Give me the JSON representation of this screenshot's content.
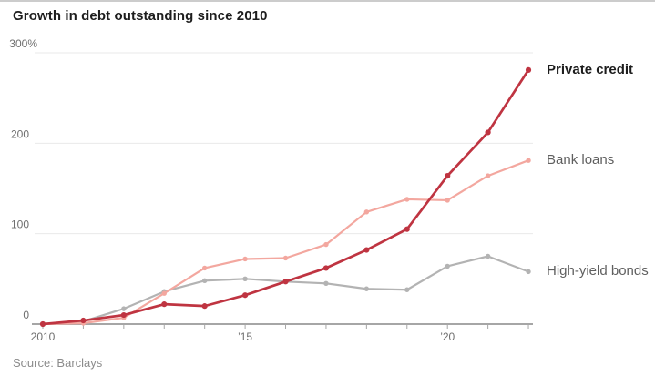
{
  "title": "Growth in debt outstanding since 2010",
  "source": "Source: Barclays",
  "colors": {
    "grid": "#e9e9e9",
    "axis": "#a6a6a6",
    "axis_text": "#6f6f6f",
    "title_text": "#1d1d1d",
    "legend_muted": "#5f5f5f",
    "source_text": "#8c8c8c"
  },
  "chart_data": {
    "type": "line",
    "title": "Growth in debt outstanding since 2010",
    "unit": "percent growth since 2010",
    "x": [
      2010,
      2011,
      2012,
      2013,
      2014,
      2015,
      2016,
      2017,
      2018,
      2019,
      2020,
      2021,
      2022
    ],
    "series": [
      {
        "name": "Private credit",
        "color": "#bf3441",
        "emphasis": true,
        "values": [
          0,
          4,
          10,
          22,
          20,
          32,
          47,
          62,
          82,
          105,
          164,
          212,
          281
        ]
      },
      {
        "name": "Bank loans",
        "color": "#f3a79f",
        "emphasis": false,
        "values": [
          0,
          1,
          7,
          34,
          62,
          72,
          73,
          88,
          124,
          138,
          137,
          164,
          181
        ]
      },
      {
        "name": "High-yield bonds",
        "color": "#b3b3b3",
        "emphasis": false,
        "values": [
          0,
          3,
          17,
          36,
          48,
          50,
          47,
          45,
          39,
          38,
          64,
          75,
          58
        ]
      }
    ],
    "y_axis": {
      "range": [
        0,
        300
      ],
      "labels": [
        {
          "text": "300%",
          "value": 300
        },
        {
          "text": "200",
          "value": 200
        },
        {
          "text": "100",
          "value": 100
        },
        {
          "text": "0",
          "value": 0
        }
      ]
    },
    "x_axis": {
      "labels": [
        {
          "year": 2010,
          "text": "2010"
        },
        {
          "year": 2015,
          "text": "’15"
        },
        {
          "year": 2020,
          "text": "’20"
        }
      ]
    },
    "grid": true,
    "legend_position": "right-of-line-ends"
  }
}
